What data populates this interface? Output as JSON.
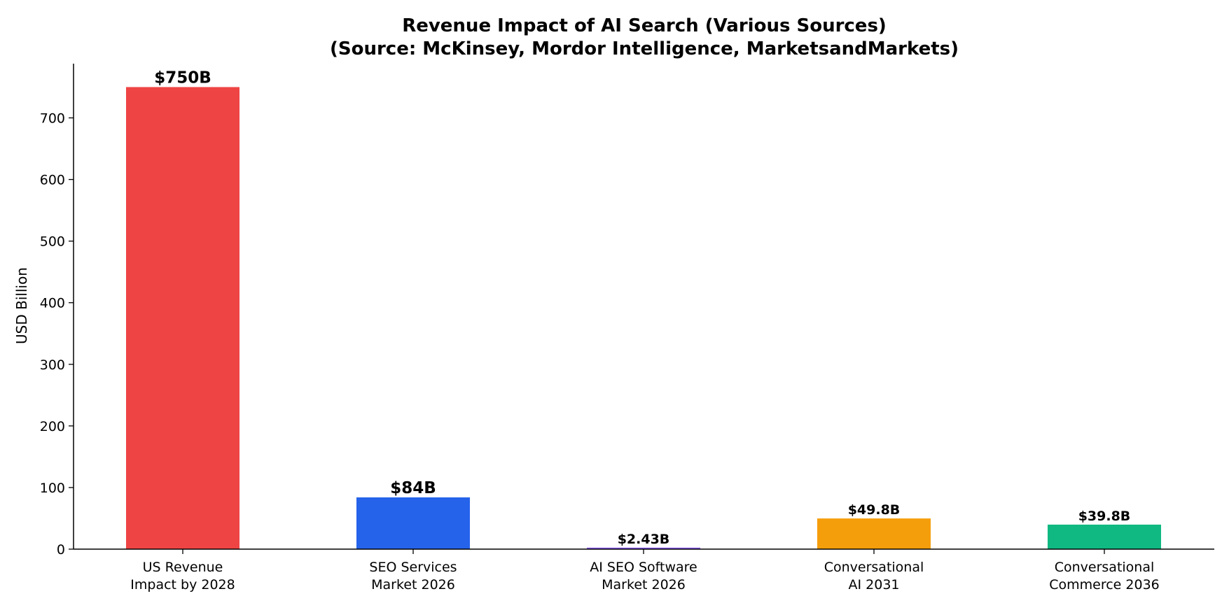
{
  "chart_data": {
    "type": "bar",
    "title": "Revenue Impact of AI Search (Various Sources)",
    "subtitle": "(Source: McKinsey, Mordor Intelligence, MarketsandMarkets)",
    "xlabel": "",
    "ylabel": "USD Billion",
    "ylim": [
      0,
      788
    ],
    "yticks": [
      0,
      100,
      200,
      300,
      400,
      500,
      600,
      700
    ],
    "grid": false,
    "categories": [
      [
        "US Revenue",
        "Impact by 2028"
      ],
      [
        "SEO Services",
        "Market 2026"
      ],
      [
        "AI SEO Software",
        "Market 2026"
      ],
      [
        "Conversational",
        "AI 2031"
      ],
      [
        "Conversational",
        "Commerce 2036"
      ]
    ],
    "values": [
      750,
      84,
      2.43,
      49.8,
      39.8
    ],
    "data_labels": [
      "$750B",
      "$84B",
      "$2.43B",
      "$49.8B",
      "$39.8B"
    ],
    "colors": [
      "#ef4444",
      "#2563eb",
      "#8b5cf6",
      "#f59e0b",
      "#10b981"
    ]
  }
}
